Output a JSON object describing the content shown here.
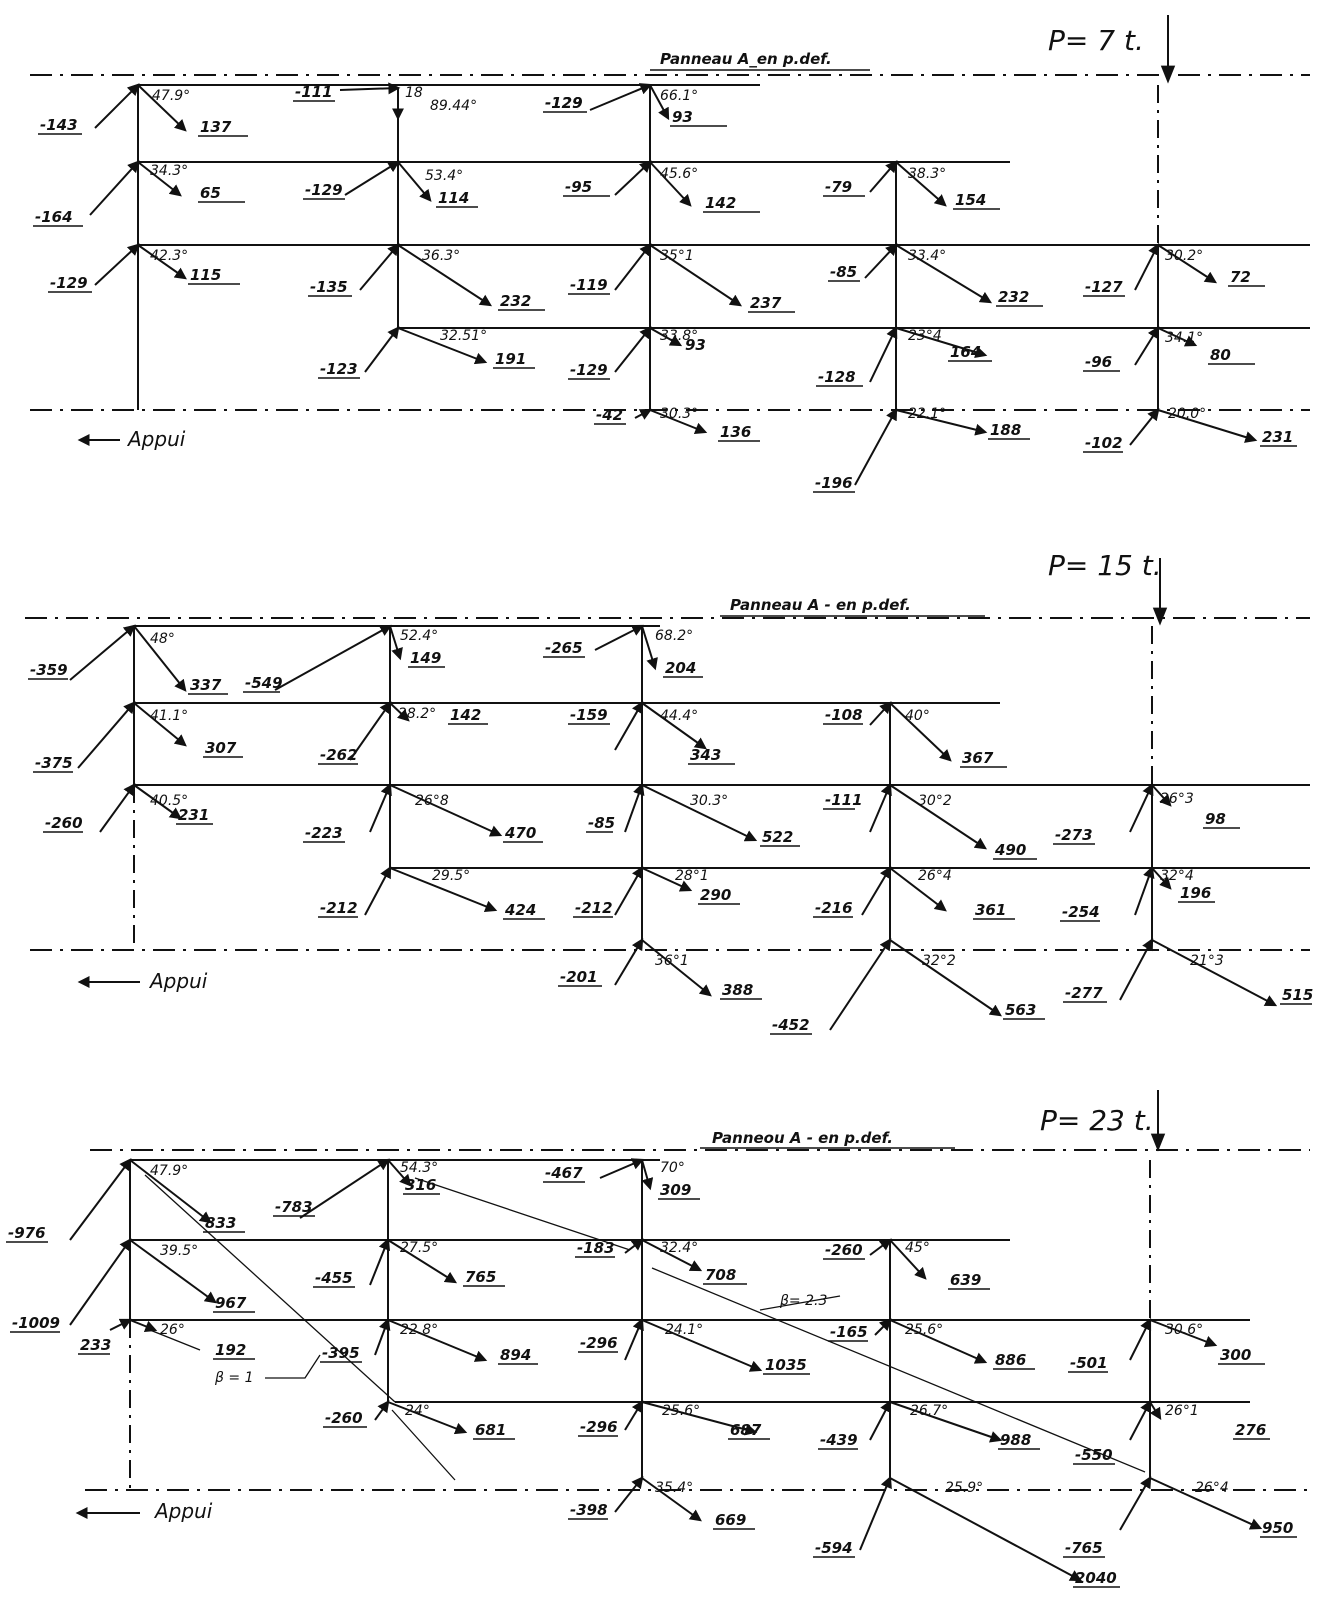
{
  "panels": [
    {
      "load": "P= 7 t.",
      "title": "Panneau A_en  p.def.",
      "support": "Appui",
      "labels": [
        "-143",
        "47.9°",
        "137",
        "-111",
        "18",
        "89.44°",
        "-129",
        "66.1°",
        "93",
        "-164",
        "34.3°",
        "65",
        "-129",
        "53.4°",
        "114",
        "-95",
        "45.6°",
        "142",
        "-79",
        "38.3°",
        "154",
        "-129",
        "42.3°",
        "115",
        "-135",
        "36.3°",
        "232",
        "-119",
        "35°1",
        "237",
        "-85",
        "33.4°",
        "232",
        "-127",
        "30.2°",
        "72",
        "-123",
        "32.51°",
        "191",
        "-129",
        "33.8°",
        "93",
        "-128",
        "23°4",
        "164",
        "-96",
        "34.1°",
        "80",
        "-42",
        "30.3°",
        "136",
        "22.1°",
        "188",
        "-196",
        "-102",
        "20.0°",
        "231"
      ]
    },
    {
      "load": "P= 15 t.",
      "title": "Panneau A  -  en  p.def.",
      "support": "Appui",
      "labels": [
        "-359",
        "48°",
        "337",
        "-549",
        "52.4°",
        "149",
        "-265",
        "68.2°",
        "204",
        "-375",
        "41.1°",
        "307",
        "-262",
        "28.2°",
        "142",
        "-159",
        "44.4°",
        "343",
        "-108",
        "40°",
        "367",
        "-260",
        "40.5°",
        "231",
        "-223",
        "26°8",
        "470",
        "-85",
        "30.3°",
        "522",
        "-111",
        "30°2",
        "490",
        "-273",
        "26°3",
        "98",
        "-212",
        "29.5°",
        "424",
        "-212",
        "28°1",
        "290",
        "-216",
        "26°4",
        "361",
        "-254",
        "32°4",
        "196",
        "-201",
        "36°1",
        "388",
        "-452",
        "32°2",
        "563",
        "-277",
        "21°3",
        "515"
      ]
    },
    {
      "load": "P= 23 t.",
      "title": "Panneou A  -  en  p.def.",
      "support": "Appui",
      "labels": [
        "-976",
        "47.9°",
        "833",
        "-783",
        "54.3°",
        "316",
        "-467",
        "70°",
        "309",
        "-1009",
        "39.5°",
        "967",
        "-455",
        "27.5°",
        "765",
        "-183",
        "32.4°",
        "708",
        "-260",
        "45°",
        "639",
        "β= 2.3",
        "233",
        "26°",
        "192",
        "β = 1",
        "-395",
        "22.8°",
        "894",
        "-296",
        "24.1°",
        "1035",
        "-165",
        "25.6°",
        "886",
        "-501",
        "30.6°",
        "300",
        "-260",
        "24°",
        "681",
        "-296",
        "25.6°",
        "687",
        "-439",
        "26.7°",
        "988",
        "-550",
        "26°1",
        "276",
        "-398",
        "35.4°",
        "669",
        "-594",
        "25.9°",
        "-765",
        "2040",
        "26°4",
        "950"
      ]
    }
  ]
}
